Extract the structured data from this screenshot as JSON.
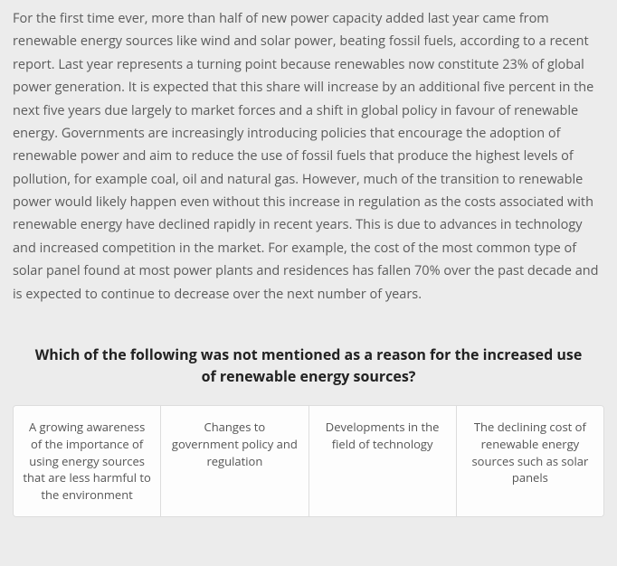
{
  "passage": "For the first time ever, more than half of new power capacity added last year came from renewable energy sources like wind and solar power, beating fossil fuels, according to a recent report. Last year represents a turning point because renewables now constitute 23% of global power generation. It is expected that this share will increase by an additional five percent in the next five years due largely to market forces and a shift in global policy in favour of renewable energy. Governments are increasingly introducing policies that encourage the adoption of renewable power and aim to reduce the use of fossil fuels that produce the highest levels of pollution, for example coal, oil and natural gas. However, much of the transition to renewable power would likely happen even without this increase in regulation as the costs associated with renewable energy have declined rapidly in recent years. This is due to advances in technology and increased competition in the market. For example, the cost of the most common type of solar panel found at most power plants and residences has fallen 70% over the past decade and is expected to continue to decrease over the next number of years.",
  "question": "Which of the following was not mentioned as a reason for the increased use of renewable energy sources?",
  "options": [
    "A growing awareness of the importance of using energy sources that are less harmful to the environment",
    "Changes to government policy and regulation",
    "Developments in the field of technology",
    "The declining cost of renewable energy sources such as solar panels"
  ],
  "colors": {
    "page_bg": "#ececec",
    "text": "#5a5a5a",
    "question_text": "#222",
    "option_border": "#ddd",
    "option_bg": "#fdfdfd"
  }
}
